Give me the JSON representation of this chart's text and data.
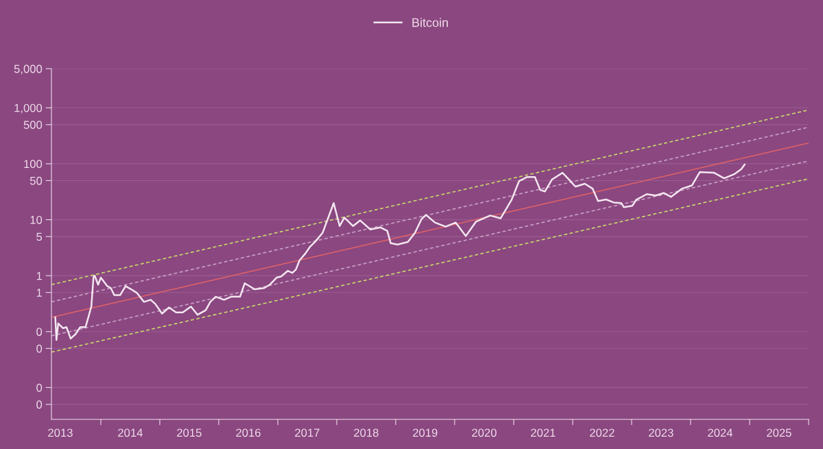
{
  "chart_data": {
    "type": "line",
    "log": "y",
    "grid": "y",
    "legend": "top",
    "xlim": [
      "2013-03-01",
      "2026-01-01"
    ],
    "xticks": [
      {
        "value": "2013-04-25",
        "label": "2013"
      },
      {
        "value": "2014-01-01",
        "label": null
      },
      {
        "value": "2014-07-02",
        "label": "2014"
      },
      {
        "value": "2015-01-01",
        "label": null
      },
      {
        "value": "2015-07-02",
        "label": "2015"
      },
      {
        "value": "2016-01-01",
        "label": null
      },
      {
        "value": "2016-07-02",
        "label": "2016"
      },
      {
        "value": "2017-01-01",
        "label": null
      },
      {
        "value": "2017-07-02",
        "label": "2017"
      },
      {
        "value": "2018-01-01",
        "label": null
      },
      {
        "value": "2018-07-02",
        "label": "2018"
      },
      {
        "value": "2019-01-01",
        "label": null
      },
      {
        "value": "2019-07-02",
        "label": "2019"
      },
      {
        "value": "2020-01-01",
        "label": null
      },
      {
        "value": "2020-07-02",
        "label": "2020"
      },
      {
        "value": "2021-01-01",
        "label": null
      },
      {
        "value": "2021-07-02",
        "label": "2021"
      },
      {
        "value": "2022-01-01",
        "label": null
      },
      {
        "value": "2022-07-02",
        "label": "2022"
      },
      {
        "value": "2023-01-01",
        "label": null
      },
      {
        "value": "2023-07-02",
        "label": "2023"
      },
      {
        "value": "2024-01-01",
        "label": null
      },
      {
        "value": "2024-07-02",
        "label": "2024"
      },
      {
        "value": "2025-01-01",
        "label": null
      },
      {
        "value": "2025-07-02",
        "label": "2025"
      },
      {
        "value": "2026-01-01",
        "label": null
      }
    ],
    "ylim": [
      0.0027,
      5000
    ],
    "yticks": [
      {
        "value": 5000,
        "label": "5,000"
      },
      {
        "value": 1000,
        "label": "1,000"
      },
      500,
      100,
      50,
      10,
      5,
      1,
      {
        "value": 0.5,
        "label": "1"
      },
      {
        "value": 0.1,
        "label": "0"
      },
      {
        "value": 0.05,
        "label": "0"
      },
      {
        "value": 0.01,
        "label": "0"
      },
      {
        "value": 0.005,
        "label": "0"
      }
    ],
    "series": [
      {
        "name": "Bitcoin",
        "color": "#f4e6f0",
        "line_style": "solid",
        "x": [
          "2013-03-25",
          "2013-04-01",
          "2013-04-12",
          "2013-05-12",
          "2013-06-02",
          "2013-06-28",
          "2013-07-28",
          "2013-08-26",
          "2013-09-28",
          "2013-10-20",
          "2013-11-03",
          "2013-11-17",
          "2013-11-24",
          "2013-12-15",
          "2014-01-01",
          "2014-02-10",
          "2014-03-04",
          "2014-03-25",
          "2014-05-01",
          "2014-06-03",
          "2014-07-08",
          "2014-08-13",
          "2014-09-25",
          "2014-11-06",
          "2014-12-05",
          "2015-01-15",
          "2015-02-27",
          "2015-04-12",
          "2015-05-23",
          "2015-07-13",
          "2015-08-23",
          "2015-10-12",
          "2015-11-10",
          "2015-12-13",
          "2016-02-03",
          "2016-03-18",
          "2016-05-12",
          "2016-06-10",
          "2016-08-11",
          "2016-10-08",
          "2016-11-12",
          "2016-12-24",
          "2017-01-22",
          "2017-03-04",
          "2017-04-01",
          "2017-04-23",
          "2017-05-15",
          "2017-06-21",
          "2017-07-20",
          "2017-08-22",
          "2017-10-05",
          "2017-11-06",
          "2017-12-13",
          "2018-01-19",
          "2018-02-17",
          "2018-04-12",
          "2018-05-26",
          "2018-07-28",
          "2018-09-28",
          "2018-11-10",
          "2018-12-01",
          "2019-01-12",
          "2019-03-17",
          "2019-04-30",
          "2019-06-10",
          "2019-07-08",
          "2019-09-01",
          "2019-11-06",
          "2020-01-08",
          "2020-03-10",
          "2020-05-12",
          "2020-08-08",
          "2020-10-12",
          "2020-12-19",
          "2021-02-03",
          "2021-03-25",
          "2021-05-12",
          "2021-06-14",
          "2021-07-13",
          "2021-08-25",
          "2021-10-30",
          "2021-12-10",
          "2022-01-18",
          "2022-03-17",
          "2022-05-04",
          "2022-06-07",
          "2022-07-27",
          "2022-09-13",
          "2022-10-30",
          "2022-11-14",
          "2023-01-05",
          "2023-01-30",
          "2023-04-05",
          "2023-05-30",
          "2023-07-20",
          "2023-09-02",
          "2023-11-10",
          "2024-01-10",
          "2024-02-27",
          "2024-05-26",
          "2024-07-27",
          "2024-09-27",
          "2024-11-10",
          "2024-12-01"
        ],
        "values": [
          0.18,
          0.071,
          0.14,
          0.115,
          0.12,
          0.075,
          0.09,
          0.12,
          0.12,
          0.2,
          0.28,
          0.97,
          1.0,
          0.69,
          0.92,
          0.65,
          0.6,
          0.45,
          0.45,
          0.65,
          0.57,
          0.49,
          0.34,
          0.37,
          0.31,
          0.21,
          0.27,
          0.22,
          0.22,
          0.28,
          0.2,
          0.24,
          0.34,
          0.42,
          0.37,
          0.42,
          0.42,
          0.73,
          0.57,
          0.6,
          0.69,
          0.92,
          0.97,
          1.22,
          1.12,
          1.29,
          1.87,
          2.5,
          3.3,
          4.1,
          5.8,
          10.3,
          19.8,
          7.7,
          10.9,
          7.7,
          9.7,
          6.7,
          7.3,
          6.3,
          3.8,
          3.6,
          4.0,
          5.8,
          10.3,
          12.2,
          8.9,
          7.5,
          8.9,
          5.1,
          9.2,
          11.9,
          10.6,
          22.8,
          49,
          58,
          58,
          34,
          32,
          52,
          69,
          52,
          39,
          44,
          36,
          21.6,
          23,
          20.3,
          19.8,
          16.7,
          17.7,
          22.8,
          28.6,
          27,
          30,
          25.6,
          36,
          41,
          71,
          69,
          55,
          65,
          80,
          97
        ]
      },
      {
        "color": "#c8d86a",
        "line_style": "dashed",
        "x": [
          "2013-03-01",
          "2026-01-01"
        ],
        "values": [
          0.69,
          915
        ]
      },
      {
        "color": "#c9a0c4",
        "line_style": "dashed",
        "x": [
          "2013-03-01",
          "2026-01-01"
        ],
        "values": [
          0.34,
          450
        ]
      },
      {
        "color": "#d9606a",
        "line_style": "solid",
        "x": [
          "2013-03-01",
          "2026-01-01"
        ],
        "values": [
          0.18,
          235
        ]
      },
      {
        "color": "#c9a0c4",
        "line_style": "dashed",
        "x": [
          "2013-03-01",
          "2026-01-01"
        ],
        "values": [
          0.084,
          112
        ]
      },
      {
        "color": "#c8d86a",
        "line_style": "dashed",
        "x": [
          "2013-03-01",
          "2026-01-01"
        ],
        "values": [
          0.043,
          54
        ]
      }
    ]
  }
}
